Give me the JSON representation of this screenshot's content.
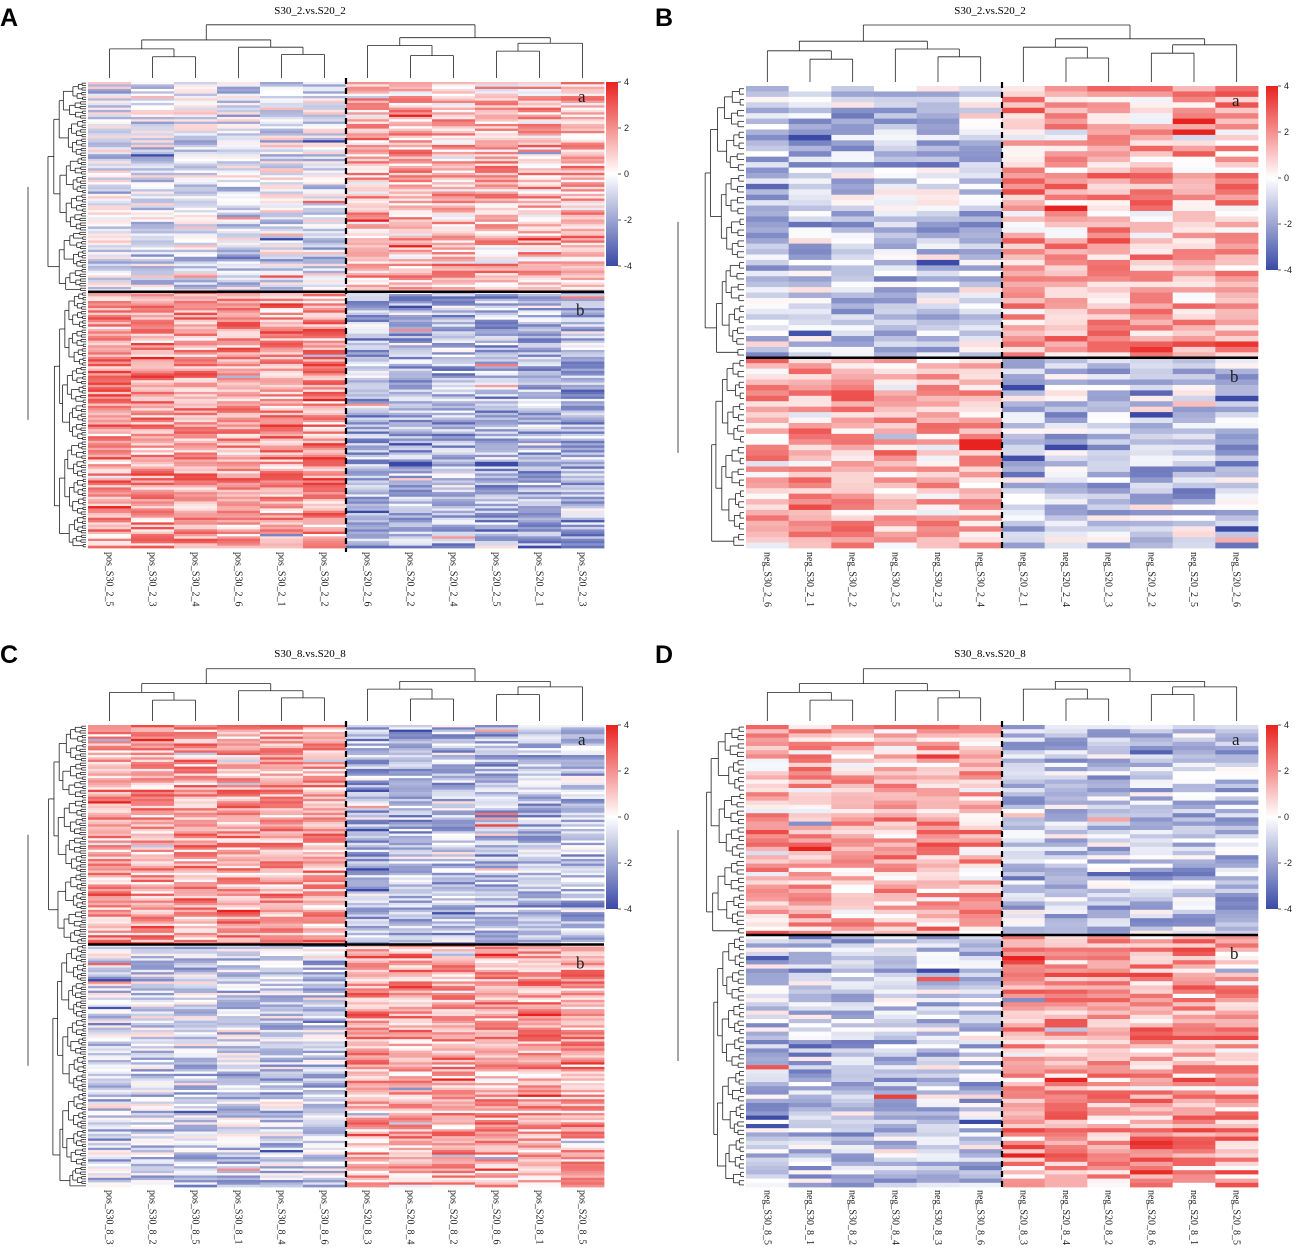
{
  "figure": "Hierarchical clustering heatmaps of differential metabolites",
  "colors": {
    "low": "#3a4aa6",
    "mid": "#ffffff",
    "high": "#e8231f",
    "text": "#000000"
  },
  "chart_data": [
    {
      "type": "heatmap",
      "panel": "A",
      "title": "S30_2.vs.S20_2",
      "samples": [
        "pos_S30_2_5",
        "pos_S30_2_3",
        "pos_S30_2_4",
        "pos_S30_2_6",
        "pos_S30_2_1",
        "pos_S30_2_2",
        "pos_S20_2_6",
        "pos_S20_2_2",
        "pos_S20_2_4",
        "pos_S20_2_5",
        "pos_S20_2_1",
        "pos_S20_2_3"
      ],
      "clusters": [
        "a",
        "b"
      ],
      "colorbar": {
        "min": -4,
        "max": 4,
        "ticks": [
          "4",
          "2",
          "0",
          "-2",
          "-4"
        ]
      },
      "row_counts": [
        90,
        110
      ],
      "groups": {
        "S30": [
          -0.3,
          0.9
        ],
        "S20": [
          0.6,
          -0.8
        ]
      }
    },
    {
      "type": "heatmap",
      "panel": "B",
      "title": "S30_2.vs.S20_2",
      "samples": [
        "neg_S30_2_6",
        "neg_S30_2_1",
        "neg_S30_2_2",
        "neg_S30_2_5",
        "neg_S30_2_3",
        "neg_S30_2_4",
        "neg_S20_2_1",
        "neg_S20_2_4",
        "neg_S20_2_3",
        "neg_S20_2_2",
        "neg_S20_2_5",
        "neg_S20_2_6"
      ],
      "clusters": [
        "a",
        "b"
      ],
      "colorbar": {
        "min": -4,
        "max": 4,
        "ticks": [
          "4",
          "2",
          "0",
          "-2",
          "-4"
        ]
      },
      "row_counts": [
        50,
        35
      ],
      "groups": {
        "S30": [
          -0.6,
          0.7
        ],
        "S20": [
          0.7,
          -0.6
        ]
      }
    },
    {
      "type": "heatmap",
      "panel": "C",
      "title": "S30_8.vs.S20_8",
      "samples": [
        "pos_S30_8_3",
        "pos_S30_8_2",
        "pos_S30_8_5",
        "pos_S30_8_1",
        "pos_S30_8_4",
        "pos_S30_8_6",
        "pos_S20_8_3",
        "pos_S20_8_4",
        "pos_S20_8_2",
        "pos_S20_8_6",
        "pos_S20_8_1",
        "pos_S20_8_5"
      ],
      "clusters": [
        "a",
        "b"
      ],
      "colorbar": {
        "min": -4,
        "max": 4,
        "ticks": [
          "4",
          "2",
          "0",
          "-2",
          "-4"
        ]
      },
      "row_counts": [
        95,
        105
      ],
      "groups": {
        "S30": [
          0.8,
          -0.5
        ],
        "S20": [
          -0.7,
          0.8
        ]
      }
    },
    {
      "type": "heatmap",
      "panel": "D",
      "title": "S30_8.vs.S20_8",
      "samples": [
        "neg_S30_8_5",
        "neg_S30_8_1",
        "neg_S30_8_2",
        "neg_S30_8_4",
        "neg_S30_8_3",
        "neg_S30_8_6",
        "neg_S20_8_3",
        "neg_S20_8_4",
        "neg_S20_8_2",
        "neg_S20_8_6",
        "neg_S20_8_1",
        "neg_S20_8_5"
      ],
      "clusters": [
        "a",
        "b"
      ],
      "colorbar": {
        "min": -4,
        "max": 4,
        "ticks": [
          "4",
          "2",
          "0",
          "-2",
          "-4"
        ]
      },
      "row_counts": [
        50,
        60
      ],
      "groups": {
        "S30": [
          0.7,
          -0.6
        ],
        "S20": [
          -0.6,
          0.8
        ]
      }
    }
  ]
}
